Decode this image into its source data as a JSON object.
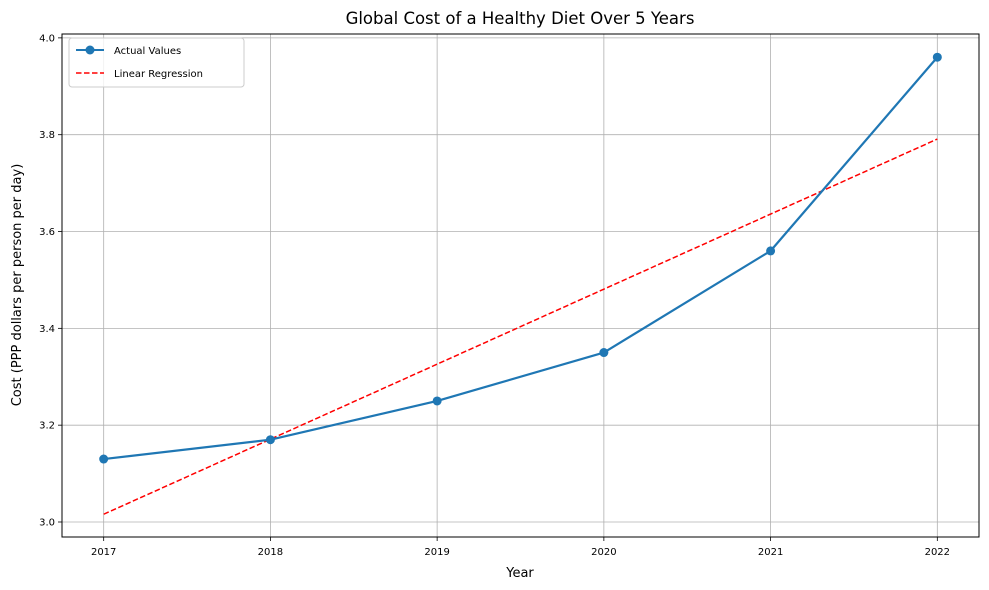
{
  "chart_data": {
    "type": "line",
    "title": "Global Cost of a Healthy Diet Over 5 Years",
    "xlabel": "Year",
    "ylabel": "Cost (PPP dollars per person per day)",
    "x": [
      2017,
      2018,
      2019,
      2020,
      2021,
      2022
    ],
    "xlim": [
      2016.75,
      2022.25
    ],
    "ylim": [
      2.969,
      4.008
    ],
    "xticks": [
      "2017",
      "2018",
      "2019",
      "2020",
      "2021",
      "2022"
    ],
    "yticks": [
      "3.0",
      "3.2",
      "3.4",
      "3.6",
      "3.8",
      "4.0"
    ],
    "ytick_values": [
      3.0,
      3.2,
      3.4,
      3.6,
      3.8,
      4.0
    ],
    "grid": true,
    "legend_position": "top-left",
    "series": [
      {
        "name": "Actual Values",
        "style": "solid-markers",
        "color": "#1f77b4",
        "values": [
          3.13,
          3.17,
          3.25,
          3.35,
          3.56,
          3.96
        ]
      },
      {
        "name": "Linear Regression",
        "style": "dashed",
        "color": "#ff0000",
        "values": [
          3.016,
          3.171,
          3.326,
          3.481,
          3.636,
          3.791
        ]
      }
    ]
  }
}
